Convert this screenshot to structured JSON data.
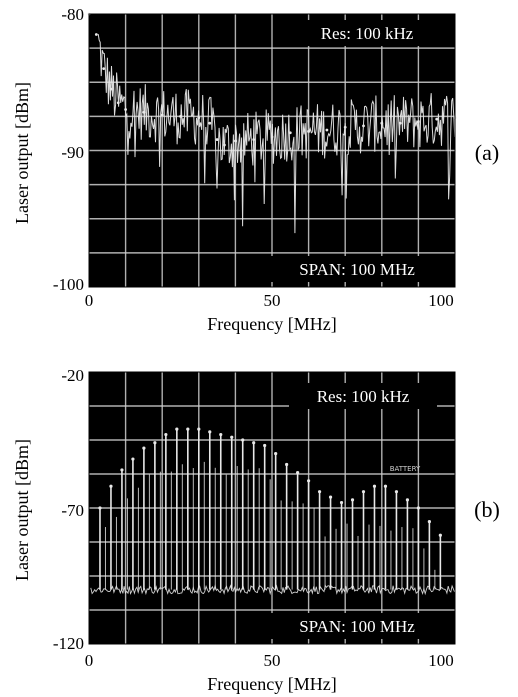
{
  "chart_data": [
    {
      "type": "line",
      "panel_label": "(a)",
      "xlabel": "Frequency [MHz]",
      "ylabel": "Laser output [dBm]",
      "xlim": [
        0,
        100
      ],
      "ylim": [
        -100,
        -80
      ],
      "x_ticks": [
        "0",
        "50",
        "100"
      ],
      "y_ticks": [
        "-80",
        "-90",
        "-100"
      ],
      "annotations": {
        "res": "Res: 100 kHz",
        "span": "SPAN: 100 MHz"
      },
      "grid": true,
      "background": "#000000",
      "trace_color": "#e8e8e8",
      "series": [
        {
          "x": [
            0,
            2,
            4,
            6,
            8,
            10,
            15,
            20,
            25,
            30,
            33,
            35,
            37,
            40,
            45,
            50,
            55,
            60,
            65,
            70,
            75,
            80,
            85,
            90,
            95,
            100
          ],
          "values": [
            -80,
            -81.5,
            -84,
            -85.5,
            -86.5,
            -87,
            -87.2,
            -87.4,
            -87.5,
            -87.6,
            -88,
            -89.2,
            -89.6,
            -89.3,
            -89.2,
            -89,
            -88.7,
            -88.6,
            -88.5,
            -88.3,
            -88.2,
            -88,
            -88,
            -87.9,
            -87.7,
            -87.6
          ]
        }
      ]
    },
    {
      "type": "line",
      "panel_label": "(b)",
      "xlabel": "Frequency [MHz]",
      "ylabel": "Laser output [dBm]",
      "xlim": [
        0,
        100
      ],
      "ylim": [
        -120,
        -20
      ],
      "x_ticks": [
        "0",
        "50",
        "100"
      ],
      "y_ticks": [
        "-20",
        "-70",
        "-120"
      ],
      "annotations": {
        "res": "Res: 100 kHz",
        "span": "SPAN: 100 MHz",
        "battery": "BATTERY"
      },
      "grid": true,
      "background": "#000000",
      "trace_color": "#e8e8e8",
      "noise_floor": -100,
      "series": [
        {
          "x": [
            3,
            6,
            9,
            12,
            15,
            18,
            21,
            24,
            27,
            30,
            33,
            36,
            39,
            42,
            45,
            48,
            51,
            54,
            57,
            60,
            63,
            66,
            69,
            72,
            75,
            78,
            81,
            84,
            87,
            90,
            93,
            96
          ],
          "values": [
            -70,
            -62,
            -56,
            -52,
            -48,
            -46,
            -43,
            -41,
            -41,
            -41,
            -42,
            -43,
            -44,
            -45,
            -46,
            -47,
            -50,
            -54,
            -57,
            -60,
            -64,
            -66,
            -68,
            -67,
            -64,
            -62,
            -62,
            -64,
            -67,
            -70,
            -75,
            -80
          ]
        }
      ]
    }
  ]
}
